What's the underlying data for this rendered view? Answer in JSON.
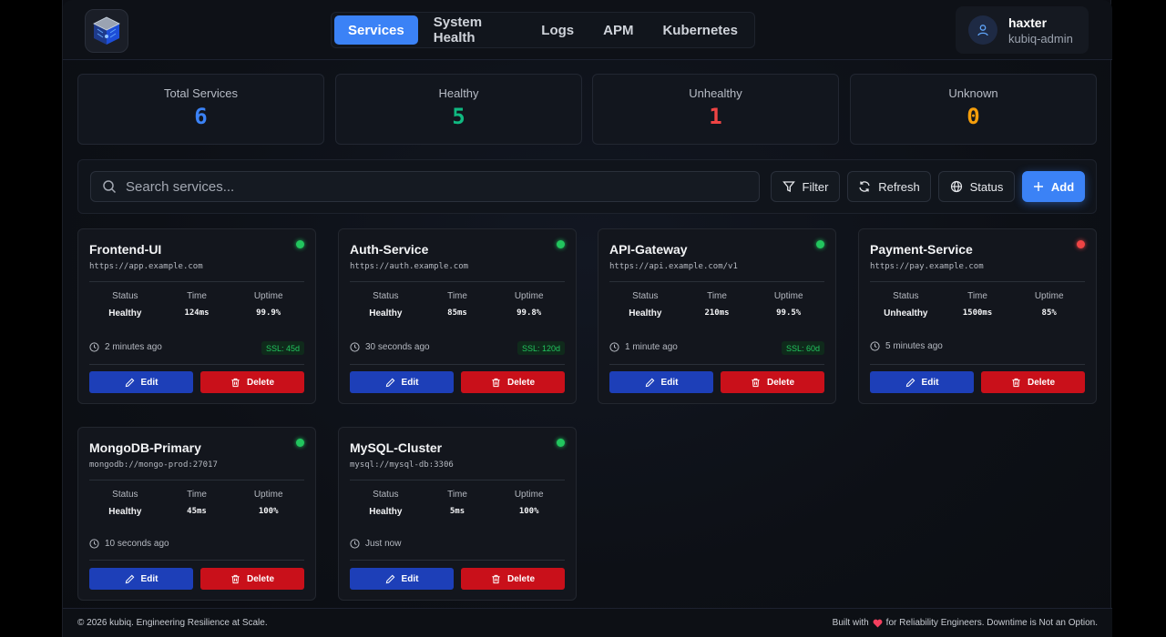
{
  "nav": {
    "tabs": [
      {
        "label": "Services",
        "active": true
      },
      {
        "label": "System Health"
      },
      {
        "label": "Logs"
      },
      {
        "label": "APM"
      },
      {
        "label": "Kubernetes"
      }
    ]
  },
  "user": {
    "name": "haxter",
    "role": "kubiq-admin"
  },
  "stats": [
    {
      "label": "Total Services",
      "value": "6",
      "color": "#3b82f6"
    },
    {
      "label": "Healthy",
      "value": "5",
      "color": "#10b981"
    },
    {
      "label": "Unhealthy",
      "value": "1",
      "color": "#ef4444"
    },
    {
      "label": "Unknown",
      "value": "0",
      "color": "#f59e0b"
    }
  ],
  "toolbar": {
    "search_placeholder": "Search services...",
    "filter_label": "Filter",
    "refresh_label": "Refresh",
    "status_label": "Status",
    "add_label": "Add"
  },
  "labels": {
    "status": "Status",
    "time": "Time",
    "uptime": "Uptime",
    "edit": "Edit",
    "delete": "Delete"
  },
  "services": [
    {
      "name": "Frontend-UI",
      "url": "https://app.example.com",
      "status": "Healthy",
      "time": "124ms",
      "uptime": "99.9%",
      "checked": "2 minutes ago",
      "ssl": "SSL: 45d",
      "dot": "#22c55e"
    },
    {
      "name": "Auth-Service",
      "url": "https://auth.example.com",
      "status": "Healthy",
      "time": "85ms",
      "uptime": "99.8%",
      "checked": "30 seconds ago",
      "ssl": "SSL: 120d",
      "dot": "#22c55e"
    },
    {
      "name": "API-Gateway",
      "url": "https://api.example.com/v1",
      "status": "Healthy",
      "time": "210ms",
      "uptime": "99.5%",
      "checked": "1 minute ago",
      "ssl": "SSL: 60d",
      "dot": "#22c55e"
    },
    {
      "name": "Payment-Service",
      "url": "https://pay.example.com",
      "status": "Unhealthy",
      "time": "1500ms",
      "uptime": "85%",
      "checked": "5 minutes ago",
      "ssl": "",
      "dot": "#ef4444"
    },
    {
      "name": "MongoDB-Primary",
      "url": "mongodb://mongo-prod:27017",
      "status": "Healthy",
      "time": "45ms",
      "uptime": "100%",
      "checked": "10 seconds ago",
      "ssl": "",
      "dot": "#22c55e"
    },
    {
      "name": "MySQL-Cluster",
      "url": "mysql://mysql-db:3306",
      "status": "Healthy",
      "time": "5ms",
      "uptime": "100%",
      "checked": "Just now",
      "ssl": "",
      "dot": "#22c55e"
    }
  ],
  "footer": {
    "copyright": "© 2026 kubiq. Engineering Resilience at Scale.",
    "built_prefix": "Built with",
    "built_suffix": "for Reliability Engineers. Downtime is Not an Option."
  }
}
